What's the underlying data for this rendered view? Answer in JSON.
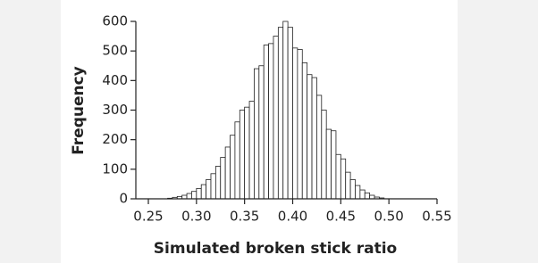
{
  "chart_data": {
    "type": "histogram",
    "xlabel": "Simulated broken stick ratio",
    "ylabel": "Frequency",
    "bins": [
      0.27,
      0.275,
      0.28,
      0.285,
      0.29,
      0.295,
      0.3,
      0.305,
      0.31,
      0.315,
      0.32,
      0.325,
      0.33,
      0.335,
      0.34,
      0.345,
      0.35,
      0.355,
      0.36,
      0.365,
      0.37,
      0.375,
      0.38,
      0.385,
      0.39,
      0.395,
      0.4,
      0.405,
      0.41,
      0.415,
      0.42,
      0.425,
      0.43,
      0.435,
      0.44,
      0.445,
      0.45,
      0.455,
      0.46,
      0.465,
      0.47,
      0.475,
      0.48,
      0.485,
      0.49,
      0.495
    ],
    "values": [
      2,
      5,
      8,
      12,
      18,
      25,
      35,
      48,
      65,
      85,
      110,
      140,
      175,
      215,
      260,
      300,
      310,
      330,
      440,
      450,
      520,
      525,
      550,
      580,
      600,
      580,
      510,
      505,
      460,
      420,
      410,
      350,
      300,
      235,
      230,
      150,
      135,
      90,
      65,
      45,
      30,
      20,
      12,
      6,
      3
    ],
    "color": "#ffffff",
    "xlim": [
      0.25,
      0.55
    ],
    "xticks": [
      {
        "value": 0.25,
        "label": "0.25"
      },
      {
        "value": 0.3,
        "label": "0.30"
      },
      {
        "value": 0.35,
        "label": "0.35"
      },
      {
        "value": 0.4,
        "label": "0.40"
      },
      {
        "value": 0.45,
        "label": "0.45"
      },
      {
        "value": 0.5,
        "label": "0.50"
      },
      {
        "value": 0.55,
        "label": "0.55"
      }
    ],
    "ylim": [
      0,
      600
    ],
    "yticks": [
      0,
      100,
      200,
      300,
      400,
      500,
      600
    ]
  }
}
